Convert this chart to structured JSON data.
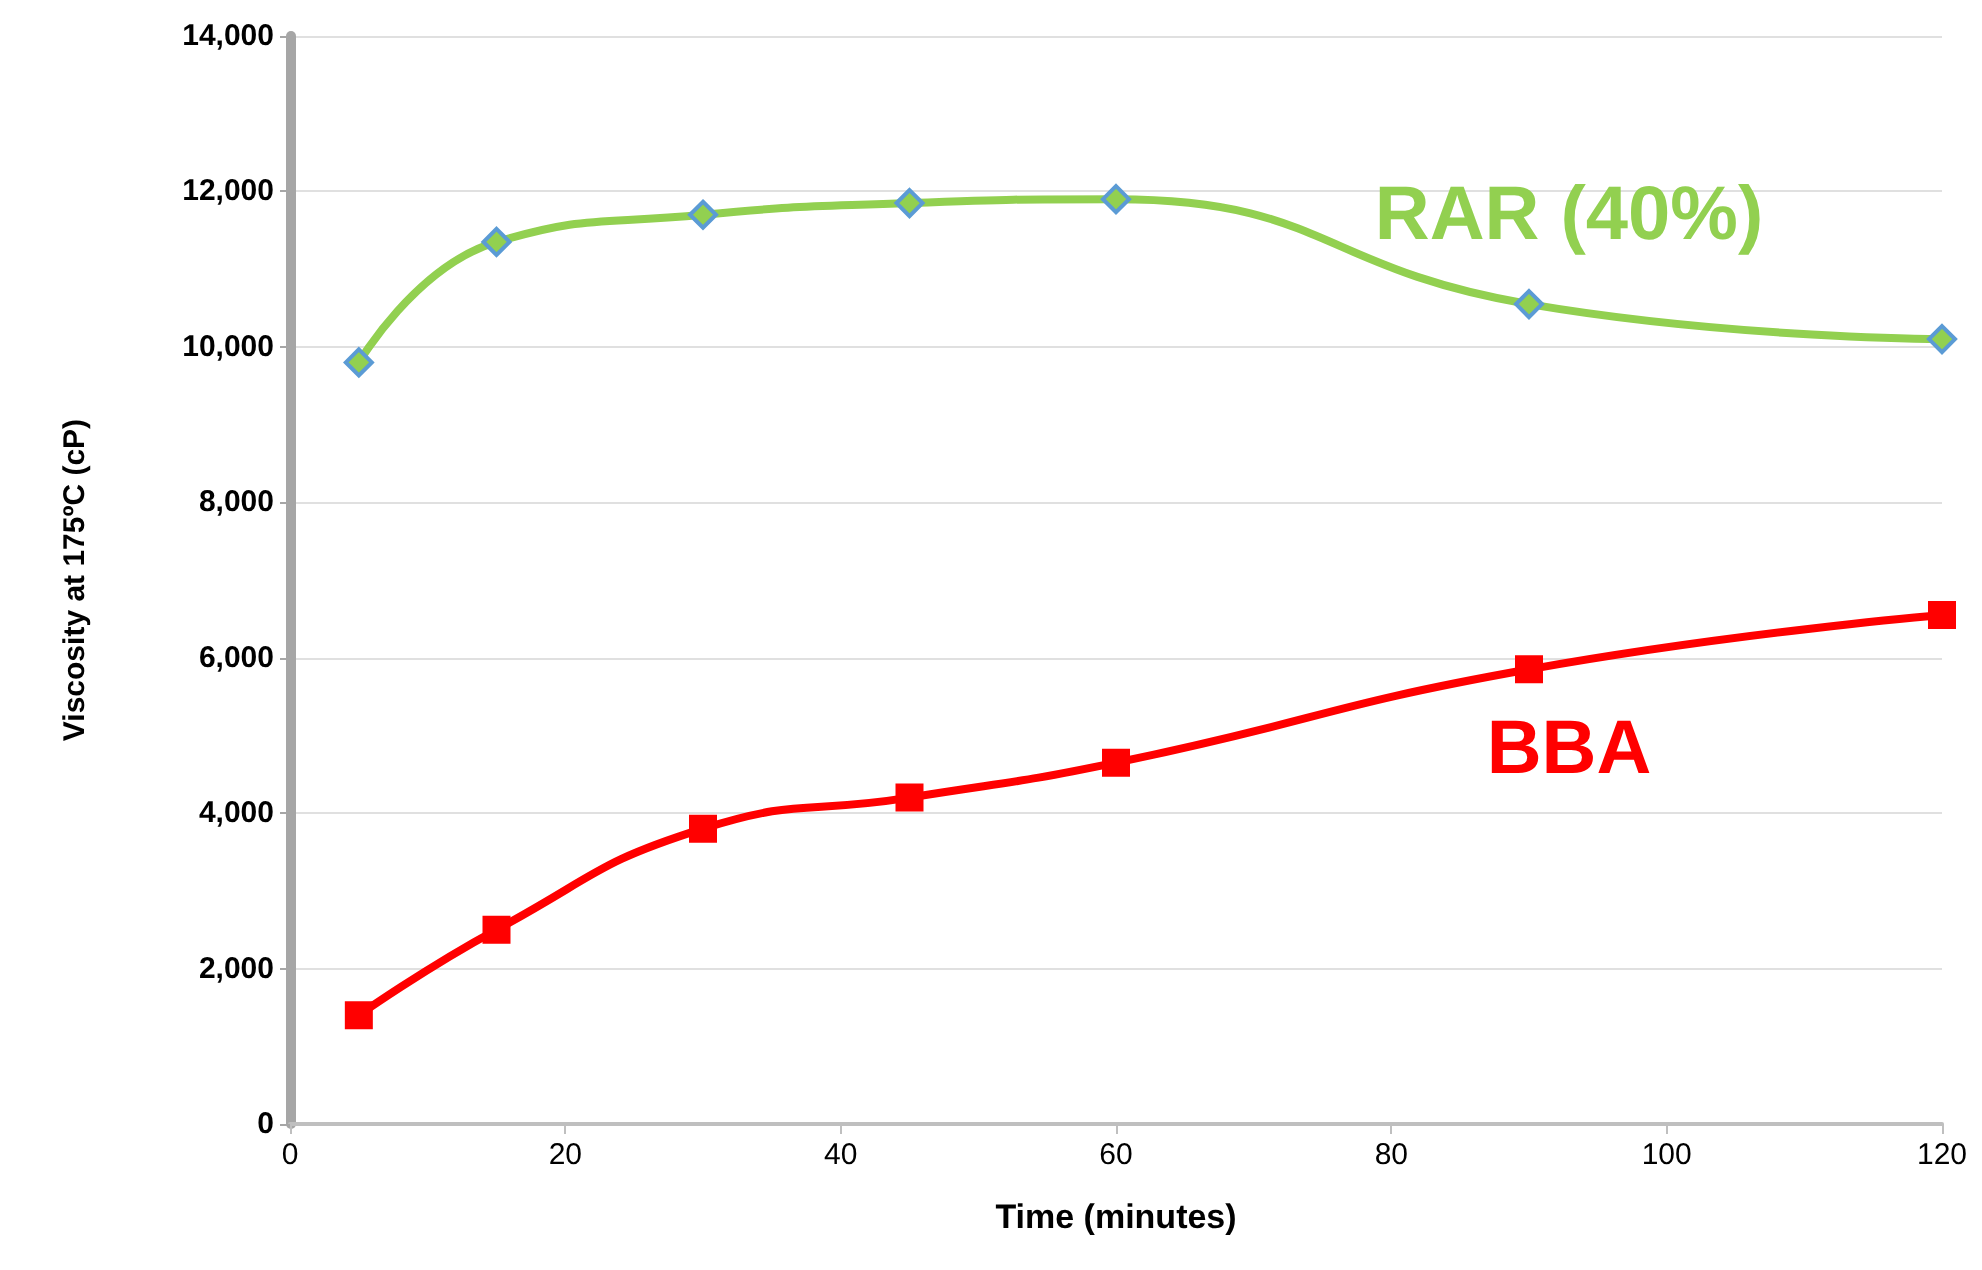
{
  "chart_data": {
    "type": "line",
    "xlabel": "Time (minutes)",
    "ylabel": "Viscosity at 175ºC (cP)",
    "x": [
      5,
      15,
      30,
      45,
      60,
      90,
      120
    ],
    "series": [
      {
        "name": "RAR (40%)",
        "color": "#92d050",
        "marker": "diamond",
        "values": [
          9800,
          11350,
          11700,
          11850,
          11900,
          10550,
          10100
        ]
      },
      {
        "name": "BBA",
        "color": "#ff0000",
        "marker": "square",
        "values": [
          1400,
          2500,
          3800,
          4200,
          4650,
          5850,
          6550
        ]
      }
    ],
    "xlim": [
      0,
      120
    ],
    "xticks": [
      0,
      20,
      40,
      60,
      80,
      100,
      120
    ],
    "ylim": [
      0,
      14000
    ],
    "yticks": [
      0,
      {
        "value": 2000,
        "label": "2,000"
      },
      {
        "value": 4000,
        "label": "4,000"
      },
      {
        "value": 6000,
        "label": "6,000"
      },
      {
        "value": 8000,
        "label": "8,000"
      },
      {
        "value": 10000,
        "label": "10,000"
      },
      {
        "value": 12000,
        "label": "12,000"
      },
      {
        "value": 14000,
        "label": "14,000"
      }
    ],
    "grid": "y",
    "legend": false
  }
}
